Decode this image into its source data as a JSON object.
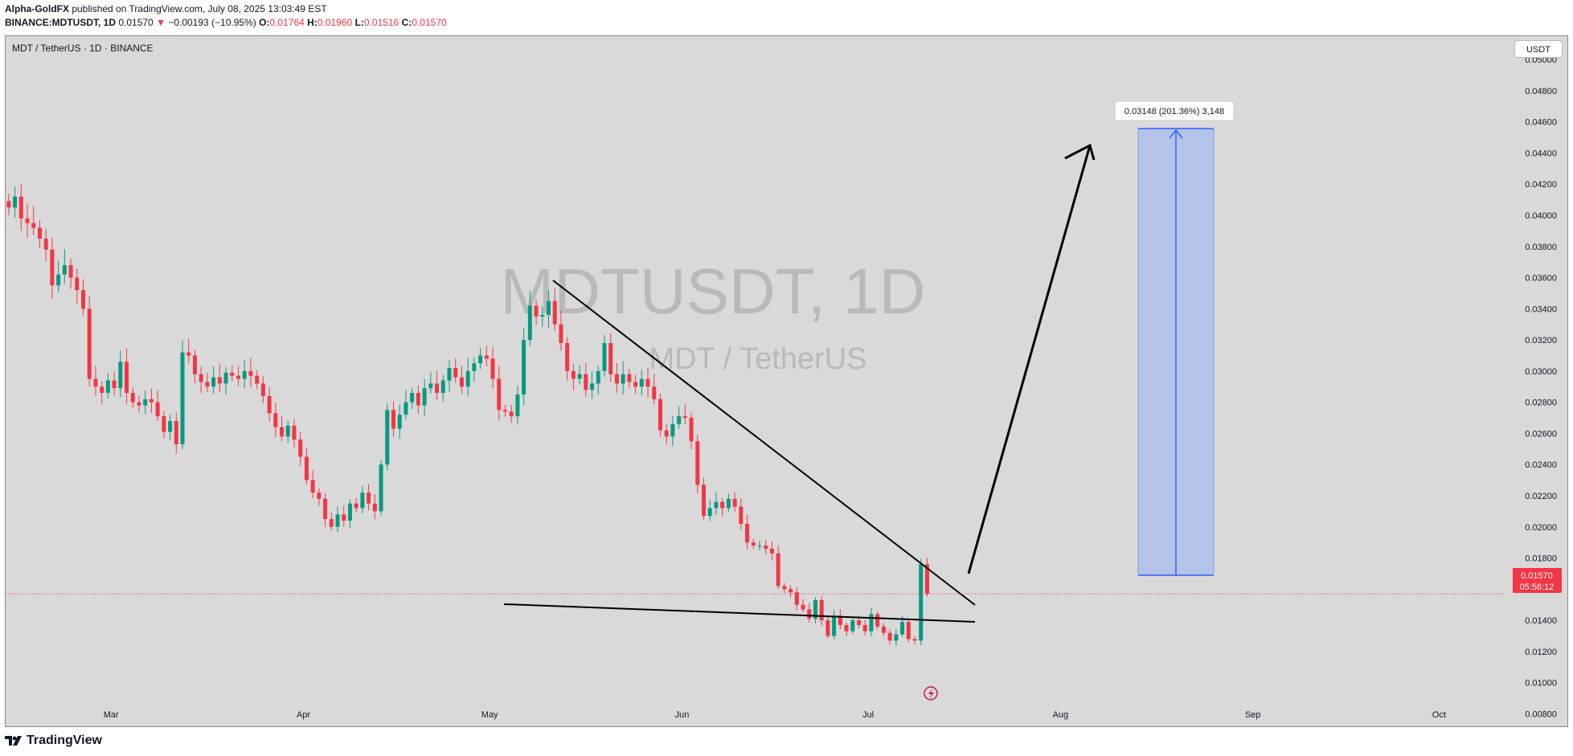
{
  "header": {
    "author": "Alpha-GoldFX",
    "published": " published on TradingView.com, July 08, 2025 13:03:49 EST",
    "symbol": "BINANCE:MDTUSDT, 1D",
    "last": "0.01570",
    "change_arrow": "▼",
    "change": "−0.00193 (−10.95%)",
    "o_label": "O:",
    "o_value": "0.01764",
    "h_label": "H:",
    "h_value": "0.01960",
    "l_label": "L:",
    "l_value": "0.01516",
    "c_label": "C:",
    "c_value": "0.01570"
  },
  "pair_title": "MDT / TetherUS · 1D · BINANCE",
  "currency_button": "USDT",
  "footer": {
    "logo_text": "TradingView",
    "logo_icon": "tradingview-logo-icon"
  },
  "colors": {
    "up": "#089981",
    "down": "#f23645",
    "background": "#d9d9d9",
    "target_box": "#b4c3e8",
    "target_line": "#2962ff"
  },
  "chart_data": {
    "type": "candlestick",
    "symbol": "MDTUSDT",
    "watermark": "MDTUSDT, 1D",
    "watermark_sub": "MDT / TetherUS",
    "y_ticks": [
      "0.05000",
      "0.04800",
      "0.04600",
      "0.04400",
      "0.04200",
      "0.04000",
      "0.03800",
      "0.03600",
      "0.03400",
      "0.03200",
      "0.03000",
      "0.02800",
      "0.02600",
      "0.02400",
      "0.02200",
      "0.02000",
      "0.01800",
      "0.01400",
      "0.01200",
      "0.01000",
      "0.00800"
    ],
    "x_ticks": [
      "Mar",
      "Apr",
      "May",
      "Jun",
      "Jul",
      "Aug",
      "Sep",
      "Oct"
    ],
    "ylim": [
      0.0072,
      0.0515
    ],
    "x_start": "2025-02-12",
    "x_end": "2025-10-13",
    "current_price": "0.01570",
    "countdown": "05:56:12",
    "target_label": "0.03148 (201.36%) 3,148",
    "close_prices": [
      0.0405,
      0.0412,
      0.0398,
      0.0395,
      0.0392,
      0.0385,
      0.0378,
      0.0355,
      0.0362,
      0.0368,
      0.036,
      0.0352,
      0.034,
      0.0295,
      0.029,
      0.0286,
      0.0294,
      0.0289,
      0.0306,
      0.0286,
      0.028,
      0.0278,
      0.0282,
      0.028,
      0.0271,
      0.0261,
      0.0268,
      0.0253,
      0.0312,
      0.031,
      0.0298,
      0.0293,
      0.029,
      0.0296,
      0.0292,
      0.0299,
      0.0297,
      0.0295,
      0.03,
      0.0297,
      0.0292,
      0.0284,
      0.0273,
      0.0264,
      0.0258,
      0.0265,
      0.0256,
      0.0245,
      0.023,
      0.0222,
      0.0218,
      0.0205,
      0.02,
      0.0208,
      0.0204,
      0.0215,
      0.0212,
      0.0222,
      0.0215,
      0.021,
      0.024,
      0.0275,
      0.0263,
      0.0272,
      0.028,
      0.0286,
      0.0278,
      0.0289,
      0.0292,
      0.0286,
      0.0294,
      0.0302,
      0.0296,
      0.029,
      0.03,
      0.0305,
      0.031,
      0.0308,
      0.0295,
      0.0275,
      0.0274,
      0.0271,
      0.0285,
      0.032,
      0.0342,
      0.0335,
      0.0336,
      0.0345,
      0.033,
      0.0318,
      0.03,
      0.0295,
      0.0298,
      0.0288,
      0.0292,
      0.03,
      0.0318,
      0.0298,
      0.0292,
      0.0298,
      0.0293,
      0.029,
      0.0295,
      0.029,
      0.0282,
      0.0262,
      0.0258,
      0.0266,
      0.0271,
      0.027,
      0.0255,
      0.0227,
      0.0207,
      0.0212,
      0.0216,
      0.0212,
      0.0218,
      0.0213,
      0.0202,
      0.019,
      0.0188,
      0.0188,
      0.0186,
      0.0183,
      0.0162,
      0.016,
      0.0158,
      0.015,
      0.0147,
      0.0141,
      0.0153,
      0.014,
      0.013,
      0.0143,
      0.0137,
      0.0133,
      0.014,
      0.0137,
      0.0133,
      0.0144,
      0.0136,
      0.0132,
      0.0127,
      0.0131,
      0.0139,
      0.0128,
      0.0127,
      0.0176,
      0.0157
    ]
  }
}
